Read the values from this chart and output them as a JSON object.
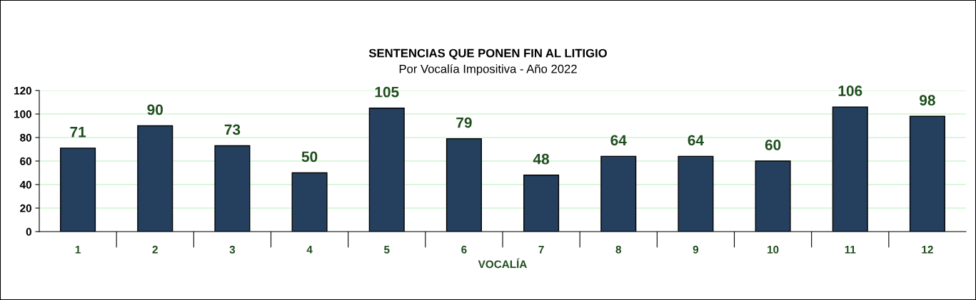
{
  "chart_data": {
    "type": "bar",
    "title": "SENTENCIAS QUE PONEN FIN AL LITIGIO",
    "subtitle": "Por Vocalía Impositiva - Año 2022",
    "xlabel": "VOCALÍA",
    "categories": [
      "1",
      "2",
      "3",
      "4",
      "5",
      "6",
      "7",
      "8",
      "9",
      "10",
      "11",
      "12"
    ],
    "values": [
      71,
      90,
      73,
      50,
      105,
      79,
      48,
      64,
      64,
      60,
      106,
      98
    ],
    "color": "#253f5f",
    "ylim": [
      0,
      120
    ],
    "yticks": [
      0,
      20,
      40,
      60,
      80,
      100,
      120
    ],
    "grid": "y",
    "data_labels": true
  }
}
